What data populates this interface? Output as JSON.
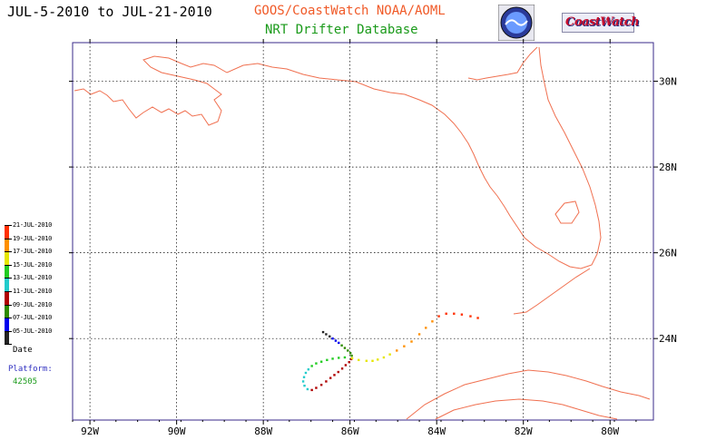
{
  "header": {
    "date_range": "JUL-5-2010 to JUL-21-2010",
    "source": "GOOS/CoastWatch  NOAA/AOML",
    "database": "NRT Drifter Database",
    "coastwatch_logo": "CoastWatch"
  },
  "map": {
    "lon_labels": [
      "92W",
      "90W",
      "88W",
      "86W",
      "84W",
      "82W",
      "80W"
    ],
    "lat_labels": [
      "30N",
      "28N",
      "26N",
      "24N"
    ],
    "lon_range": [
      -92.4,
      -79.0
    ],
    "lat_range": [
      22.1,
      30.9
    ],
    "grid": true,
    "coastline_color": "#f07050",
    "frame_color": "#3a2a8a"
  },
  "legend": {
    "entries": [
      {
        "label": "21-JUL-2010",
        "color": "#ff3000"
      },
      {
        "label": "19-JUL-2010",
        "color": "#ff9000"
      },
      {
        "label": "17-JUL-2010",
        "color": "#e6e600"
      },
      {
        "label": "15-JUL-2010",
        "color": "#22cc22"
      },
      {
        "label": "13-JUL-2010",
        "color": "#22cccc"
      },
      {
        "label": "11-JUL-2010",
        "color": "#b00000"
      },
      {
        "label": "09-JUL-2010",
        "color": "#2e8b00"
      },
      {
        "label": "07-JUL-2010",
        "color": "#0000ee"
      },
      {
        "label": "05-JUL-2010",
        "color": "#222222"
      }
    ],
    "date_label": "Date"
  },
  "platform": {
    "label": "Platform:",
    "id": "42505"
  },
  "track": {
    "segments": [
      {
        "color": "#222222",
        "points": [
          [
            -86.62,
            24.15
          ],
          [
            -86.55,
            24.1
          ],
          [
            -86.47,
            24.05
          ]
        ]
      },
      {
        "color": "#0000ee",
        "points": [
          [
            -86.4,
            24.0
          ],
          [
            -86.33,
            23.95
          ],
          [
            -86.26,
            23.9
          ]
        ]
      },
      {
        "color": "#2e8b00",
        "points": [
          [
            -86.19,
            23.84
          ],
          [
            -86.12,
            23.78
          ],
          [
            -86.05,
            23.72
          ],
          [
            -85.99,
            23.66
          ],
          [
            -85.96,
            23.6
          ]
        ]
      },
      {
        "color": "#b00000",
        "points": [
          [
            -85.97,
            23.52
          ],
          [
            -86.02,
            23.45
          ],
          [
            -86.1,
            23.38
          ],
          [
            -86.18,
            23.3
          ],
          [
            -86.27,
            23.22
          ],
          [
            -86.36,
            23.15
          ],
          [
            -86.45,
            23.08
          ],
          [
            -86.55,
            23.0
          ],
          [
            -86.66,
            22.92
          ],
          [
            -86.78,
            22.85
          ],
          [
            -86.88,
            22.8
          ]
        ]
      },
      {
        "color": "#22cccc",
        "points": [
          [
            -86.98,
            22.82
          ],
          [
            -87.05,
            22.9
          ],
          [
            -87.08,
            23.0
          ],
          [
            -87.06,
            23.1
          ],
          [
            -87.02,
            23.2
          ],
          [
            -86.96,
            23.28
          ]
        ]
      },
      {
        "color": "#22cc22",
        "points": [
          [
            -86.88,
            23.36
          ],
          [
            -86.78,
            23.42
          ],
          [
            -86.66,
            23.46
          ],
          [
            -86.53,
            23.5
          ],
          [
            -86.4,
            23.53
          ],
          [
            -86.26,
            23.55
          ],
          [
            -86.12,
            23.56
          ]
        ]
      },
      {
        "color": "#e6e600",
        "points": [
          [
            -85.95,
            23.54
          ],
          [
            -85.8,
            23.5
          ],
          [
            -85.62,
            23.48
          ],
          [
            -85.48,
            23.48
          ],
          [
            -85.36,
            23.51
          ],
          [
            -85.22,
            23.56
          ],
          [
            -85.08,
            23.63
          ]
        ]
      },
      {
        "color": "#ff9000",
        "points": [
          [
            -84.92,
            23.72
          ],
          [
            -84.75,
            23.82
          ],
          [
            -84.58,
            23.93
          ],
          [
            -84.4,
            24.1
          ],
          [
            -84.25,
            24.25
          ],
          [
            -84.1,
            24.4
          ]
        ]
      },
      {
        "color": "#ff3000",
        "points": [
          [
            -83.95,
            24.52
          ],
          [
            -83.78,
            24.58
          ],
          [
            -83.6,
            24.58
          ],
          [
            -83.42,
            24.56
          ],
          [
            -83.22,
            24.52
          ],
          [
            -83.05,
            24.48
          ]
        ]
      }
    ]
  }
}
